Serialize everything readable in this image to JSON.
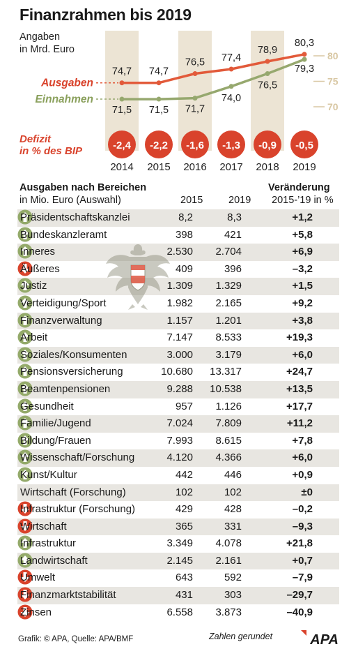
{
  "title": "Finanzrahmen bis 2019",
  "colors": {
    "ausgaben": "#e25a3a",
    "einnahmen": "#96a86e",
    "axis": "#d8c7a3",
    "shade": "#ece4d4",
    "deficit": "#d9432c",
    "label_red": "#d9432c",
    "label_green": "#8aa05c",
    "up": "#94aa6a",
    "down": "#d9432c"
  },
  "chart_data": {
    "type": "line",
    "units_label": [
      "Angaben",
      "in Mrd. Euro"
    ],
    "x": [
      "2014",
      "2015",
      "2016",
      "2017",
      "2018",
      "2019"
    ],
    "ylim": [
      70,
      80
    ],
    "y_ticks": [
      70,
      75,
      80
    ],
    "series": [
      {
        "name": "Ausgaben",
        "values": [
          74.7,
          74.7,
          76.5,
          77.4,
          78.9,
          80.3
        ],
        "labels": [
          "74,7",
          "74,7",
          "76,5",
          "77,4",
          "78,9",
          "80,3"
        ]
      },
      {
        "name": "Einnahmen",
        "values": [
          71.5,
          71.5,
          71.7,
          74.0,
          76.5,
          79.3
        ],
        "labels": [
          "71,5",
          "71,5",
          "71,7",
          "74,0",
          "76,5",
          "79,3"
        ]
      }
    ],
    "deficit": {
      "label": [
        "Defizit",
        "in % des BIP"
      ],
      "values": [
        -2.4,
        -2.2,
        -1.6,
        -1.3,
        -0.9,
        -0.5
      ],
      "labels": [
        "-2,4",
        "-2,2",
        "-1,6",
        "-1,3",
        "-0,9",
        "-0,5"
      ]
    }
  },
  "table": {
    "title": "Ausgaben nach Bereichen",
    "subtitle": "in Mio. Euro (Auswahl)",
    "col_2015": "2015",
    "col_2019": "2019",
    "col_change": "Veränderung",
    "col_change_sub": "2015-’19 in %",
    "rows": [
      {
        "name": "Präsidentschaftskanzlei",
        "v2015": "8,2",
        "v2019": "8,3",
        "change": "+1,2",
        "dir": "up"
      },
      {
        "name": "Bundeskanzleramt",
        "v2015": "398",
        "v2019": "421",
        "change": "+5,8",
        "dir": "up"
      },
      {
        "name": "Inneres",
        "v2015": "2.530",
        "v2019": "2.704",
        "change": "+6,9",
        "dir": "up"
      },
      {
        "name": "Äußeres",
        "v2015": "409",
        "v2019": "396",
        "change": "–3,2",
        "dir": "down"
      },
      {
        "name": "Justiz",
        "v2015": "1.309",
        "v2019": "1.329",
        "change": "+1,5",
        "dir": "up"
      },
      {
        "name": "Verteidigung/Sport",
        "v2015": "1.982",
        "v2019": "2.165",
        "change": "+9,2",
        "dir": "up"
      },
      {
        "name": "Finanzverwaltung",
        "v2015": "1.157",
        "v2019": "1.201",
        "change": "+3,8",
        "dir": "up"
      },
      {
        "name": "Arbeit",
        "v2015": "7.147",
        "v2019": "8.533",
        "change": "+19,3",
        "dir": "up"
      },
      {
        "name": "Soziales/Konsumenten",
        "v2015": "3.000",
        "v2019": "3.179",
        "change": "+6,0",
        "dir": "up"
      },
      {
        "name": "Pensionsversicherung",
        "v2015": "10.680",
        "v2019": "13.317",
        "change": "+24,7",
        "dir": "up"
      },
      {
        "name": "Beamtenpensionen",
        "v2015": "9.288",
        "v2019": "10.538",
        "change": "+13,5",
        "dir": "up"
      },
      {
        "name": "Gesundheit",
        "v2015": "957",
        "v2019": "1.126",
        "change": "+17,7",
        "dir": "up"
      },
      {
        "name": "Familie/Jugend",
        "v2015": "7.024",
        "v2019": "7.809",
        "change": "+11,2",
        "dir": "up"
      },
      {
        "name": "Bildung/Frauen",
        "v2015": "7.993",
        "v2019": "8.615",
        "change": "+7,8",
        "dir": "up"
      },
      {
        "name": "Wissenschaft/Forschung",
        "v2015": "4.120",
        "v2019": "4.366",
        "change": "+6,0",
        "dir": "up"
      },
      {
        "name": "Kunst/Kultur",
        "v2015": "442",
        "v2019": "446",
        "change": "+0,9",
        "dir": "up"
      },
      {
        "name": "Wirtschaft (Forschung)",
        "v2015": "102",
        "v2019": "102",
        "change": "±0",
        "dir": "none"
      },
      {
        "name": "Infrastruktur (Forschung)",
        "v2015": "429",
        "v2019": "428",
        "change": "–0,2",
        "dir": "down"
      },
      {
        "name": "Wirtschaft",
        "v2015": "365",
        "v2019": "331",
        "change": "–9,3",
        "dir": "down"
      },
      {
        "name": "Infrastruktur",
        "v2015": "3.349",
        "v2019": "4.078",
        "change": "+21,8",
        "dir": "up"
      },
      {
        "name": "Landwirtschaft",
        "v2015": "2.145",
        "v2019": "2.161",
        "change": "+0,7",
        "dir": "up"
      },
      {
        "name": "Umwelt",
        "v2015": "643",
        "v2019": "592",
        "change": "–7,9",
        "dir": "down"
      },
      {
        "name": "Finanzmarktstabilität",
        "v2015": "431",
        "v2019": "303",
        "change": "–29,7",
        "dir": "down"
      },
      {
        "name": "Zinsen",
        "v2015": "6.558",
        "v2019": "3.873",
        "change": "–40,9",
        "dir": "down"
      }
    ]
  },
  "footer": {
    "credit": "Grafik: © APA, Quelle: APA/BMF",
    "note": "Zahlen gerundet",
    "logo": "APA"
  },
  "crest_icon": "austrian-eagle-crest-icon"
}
